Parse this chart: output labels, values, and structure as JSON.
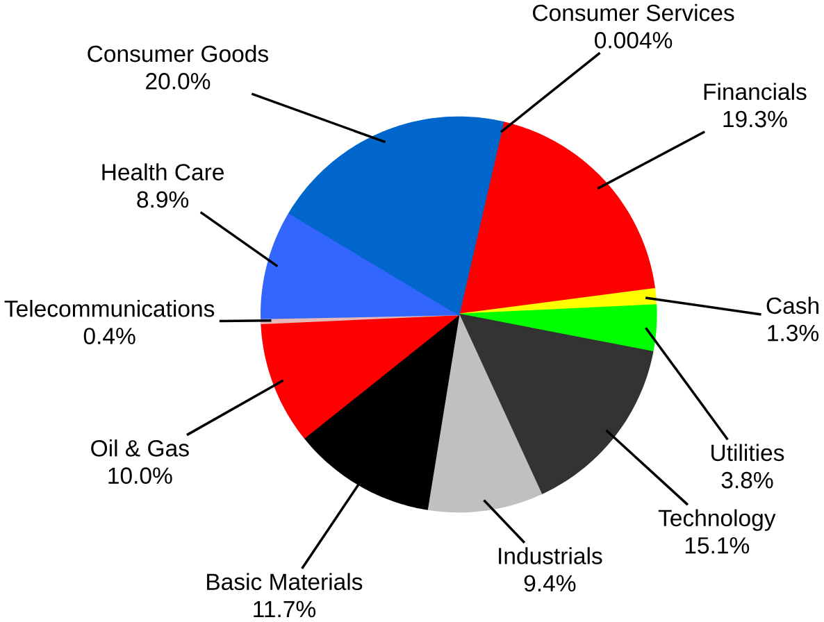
{
  "chart_data": {
    "type": "pie",
    "categories": [
      "Consumer Services",
      "Financials",
      "Cash",
      "Utilities",
      "Technology",
      "Industrials",
      "Basic Materials",
      "Oil & Gas",
      "Telecommunications",
      "Health Care",
      "Consumer Goods"
    ],
    "values": [
      0.004,
      19.3,
      1.3,
      3.8,
      15.1,
      9.4,
      11.7,
      10.0,
      0.4,
      8.9,
      20.0
    ],
    "value_labels": [
      "0.004%",
      "19.3%",
      "1.3%",
      "3.8%",
      "15.1%",
      "9.4%",
      "11.7%",
      "10.0%",
      "0.4%",
      "8.9%",
      "20.0%"
    ],
    "colors": [
      "#c0504d",
      "#ff0000",
      "#ffff00",
      "#00ff00",
      "#333333",
      "#c0c0c0",
      "#000000",
      "#ff0000",
      "#e6b9b8",
      "#3366ff",
      "#0066cc"
    ],
    "legend": false
  }
}
